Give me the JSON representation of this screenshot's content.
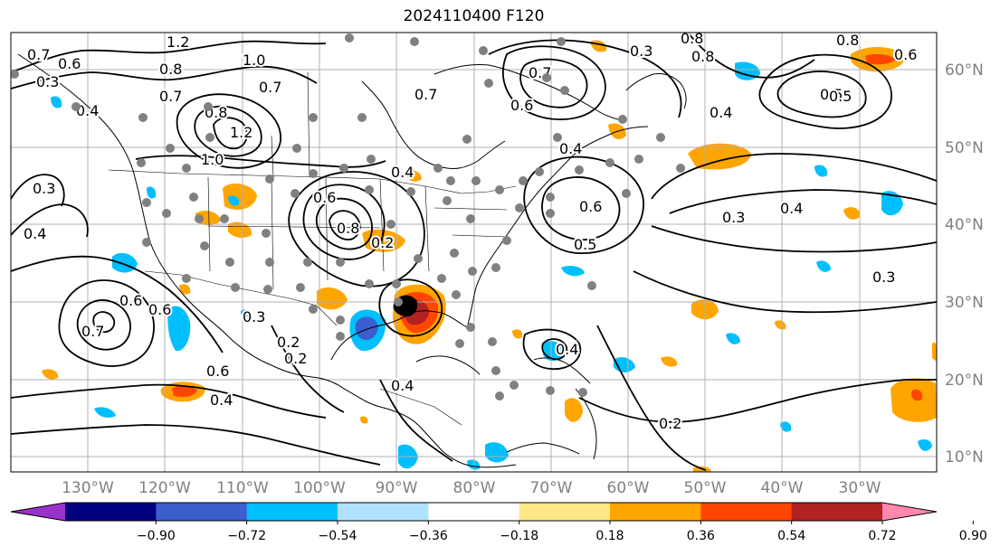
{
  "title": "2024110400 F120",
  "lon_labels": [
    "130°W",
    "120°W",
    "110°W",
    "100°W",
    "90°W",
    "80°W",
    "70°W",
    "60°W",
    "50°W",
    "40°W",
    "30°W"
  ],
  "lat_labels": [
    "60°N",
    "50°N",
    "40°N",
    "30°N",
    "20°N",
    "10°N"
  ],
  "colorbar": {
    "ticks": [
      "−0.90",
      "−0.72",
      "−0.54",
      "−0.36",
      "−0.18",
      "0.18",
      "0.36",
      "0.54",
      "0.72",
      "0.90"
    ],
    "colors": [
      "#9932cc",
      "#000080",
      "#3a5fcd",
      "#00bfff",
      "#b0e2ff",
      "#ffffff",
      "#ffe78a",
      "#ffa500",
      "#ff4500",
      "#b22222",
      "#ff88b0"
    ]
  },
  "contour_labels": [
    "1.2",
    "0.7",
    "0.6",
    "0.8",
    "1.0",
    "0.7",
    "0.3",
    "0.8",
    "0.7",
    "0.8",
    "0.6",
    "0.8",
    "0.5",
    "0.6",
    "0.7",
    "0.8",
    "1.2",
    "1.0",
    "0.4",
    "0.3",
    "0.4",
    "0.6",
    "0.8",
    "0.2",
    "0.7",
    "0.6",
    "0.5",
    "0.4",
    "0.3",
    "0.4",
    "0.5",
    "0.6",
    "0.6",
    "0.7",
    "0.3",
    "0.2",
    "0.6",
    "0.4",
    "0.2",
    "0.2",
    "0.4",
    "0.4",
    "0.3",
    "0.4",
    "0.3",
    "0.4"
  ]
}
